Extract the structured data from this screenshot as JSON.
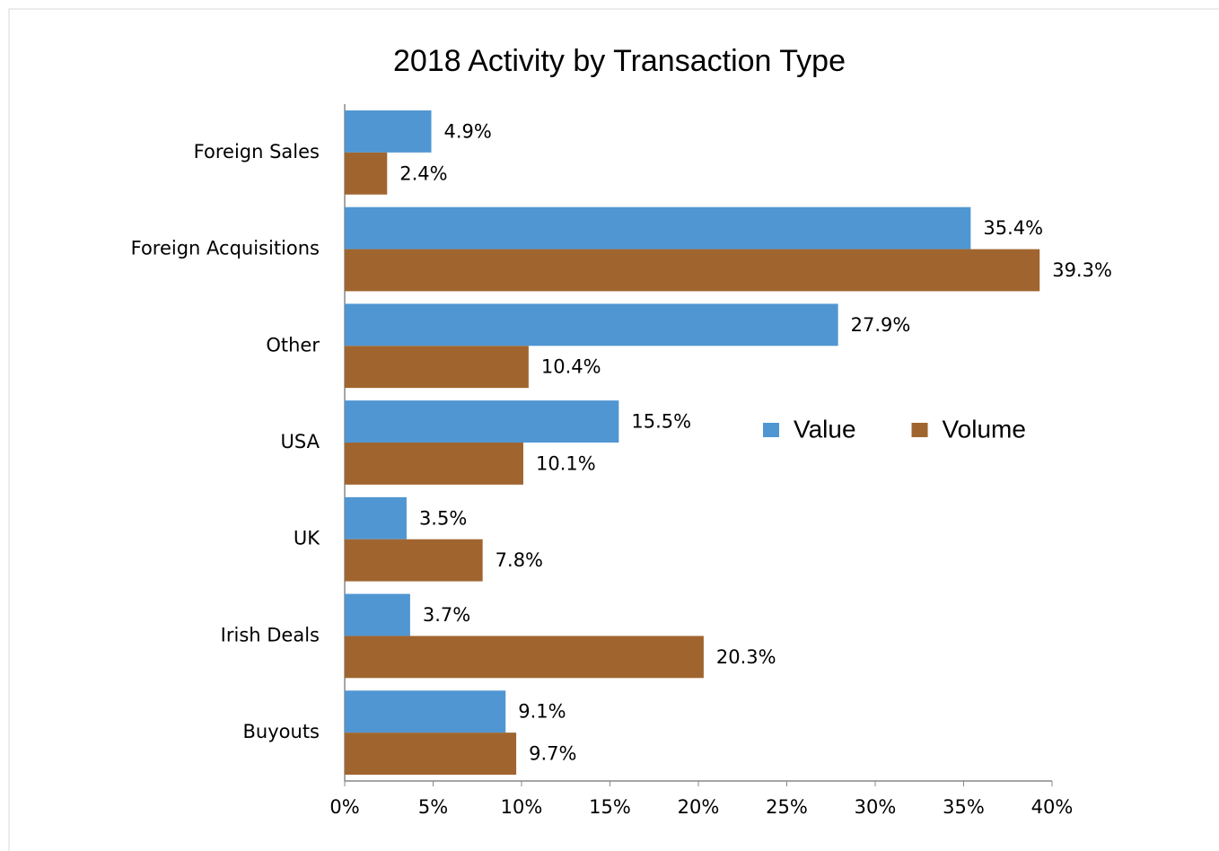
{
  "chart_data": {
    "type": "bar",
    "orientation": "horizontal",
    "title": "2018 Activity by Transaction Type",
    "categories": [
      "Foreign Sales",
      "Foreign Acquisitions",
      "Other",
      "USA",
      "UK",
      "Irish Deals",
      "Buyouts"
    ],
    "series": [
      {
        "name": "Value",
        "color": "#5096d2",
        "values": [
          4.9,
          35.4,
          27.9,
          15.5,
          3.5,
          3.7,
          9.1
        ],
        "value_labels": [
          "4.9%",
          "35.4%",
          "27.9%",
          "15.5%",
          "3.5%",
          "3.7%",
          "9.1%"
        ]
      },
      {
        "name": "Volume",
        "color": "#a0652f",
        "values": [
          2.4,
          39.3,
          10.4,
          10.1,
          7.8,
          20.3,
          9.7
        ],
        "value_labels": [
          "2.4%",
          "39.3%",
          "10.4%",
          "10.1%",
          "7.8%",
          "20.3%",
          "9.7%"
        ]
      }
    ],
    "xlim": [
      0,
      40
    ],
    "xticks": [
      {
        "value": 0,
        "label": "0%"
      },
      {
        "value": 5,
        "label": "5%"
      },
      {
        "value": 10,
        "label": "10%"
      },
      {
        "value": 15,
        "label": "15%"
      },
      {
        "value": 20,
        "label": "20%"
      },
      {
        "value": 25,
        "label": "25%"
      },
      {
        "value": 30,
        "label": "30%"
      },
      {
        "value": 35,
        "label": "35%"
      },
      {
        "value": 40,
        "label": "40%"
      }
    ],
    "grid": false,
    "legend": "right",
    "title_color": "#a5713b"
  }
}
